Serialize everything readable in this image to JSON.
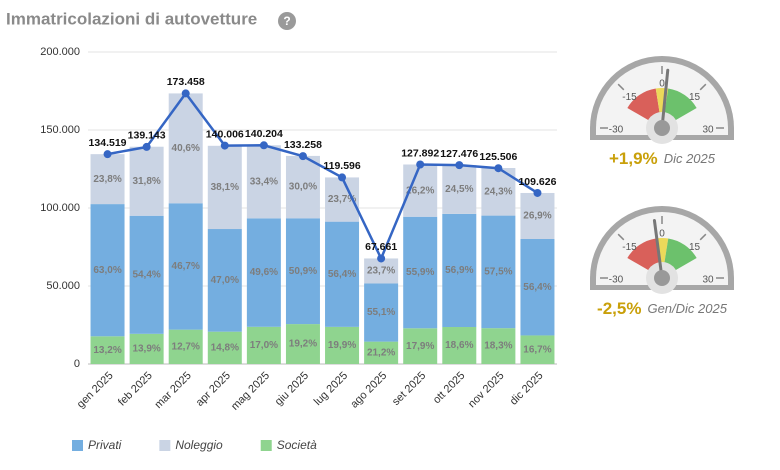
{
  "header": {
    "title": "Immatricolazioni di autovetture",
    "help_icon": "?"
  },
  "chart_data": [
    {
      "type": "stacked-bar-line",
      "categories": [
        "gen 2025",
        "feb 2025",
        "mar 2025",
        "apr 2025",
        "mag 2025",
        "giu 2025",
        "lug 2025",
        "ago 2025",
        "set 2025",
        "ott 2025",
        "nov 2025",
        "dic 2025"
      ],
      "series": [
        {
          "name": "Privati",
          "color": "#74aee0",
          "values": [
            63.0,
            54.4,
            46.7,
            47.0,
            49.6,
            50.9,
            56.4,
            55.1,
            55.9,
            56.9,
            57.5,
            56.4
          ],
          "value_labels": [
            "63,0%",
            "54,4%",
            "46,7%",
            "47,0%",
            "49,6%",
            "50,9%",
            "56,4%",
            "55,1%",
            "55,9%",
            "56,9%",
            "57,5%",
            "56,4%"
          ]
        },
        {
          "name": "Noleggio",
          "color": "#cad4e4",
          "values": [
            23.8,
            31.8,
            40.6,
            38.1,
            33.4,
            30.0,
            23.7,
            23.7,
            26.2,
            24.5,
            24.3,
            26.9
          ],
          "value_labels": [
            "23,8%",
            "31,8%",
            "40,6%",
            "38,1%",
            "33,4%",
            "30,0%",
            "23,7%",
            "23,7%",
            "26,2%",
            "24,5%",
            "24,3%",
            "26,9%"
          ]
        },
        {
          "name": "Società",
          "color": "#8fd48f",
          "values": [
            13.2,
            13.9,
            12.7,
            14.8,
            17.0,
            19.2,
            19.9,
            21.2,
            17.9,
            18.6,
            18.3,
            16.7
          ],
          "value_labels": [
            "13,2%",
            "13,9%",
            "12,7%",
            "14,8%",
            "17,0%",
            "19,2%",
            "19,9%",
            "21,2%",
            "17,9%",
            "18,6%",
            "18,3%",
            "16,7%"
          ]
        }
      ],
      "line": {
        "color": "#3566c4",
        "values": [
          134519,
          139143,
          173458,
          140006,
          140204,
          133258,
          119596,
          67661,
          127892,
          127476,
          125506,
          109626
        ],
        "value_labels": [
          "134.519",
          "139.143",
          "173.458",
          "140.006",
          "140.204",
          "133.258",
          "119.596",
          "67.661",
          "127.892",
          "127.476",
          "125.506",
          "109.626"
        ]
      },
      "ylim": [
        0,
        200000
      ],
      "yticks": [
        0,
        {
          "value": 50000,
          "label": "50.000"
        },
        {
          "value": 100000,
          "label": "100.000"
        },
        {
          "value": 150000,
          "label": "150.000"
        },
        {
          "value": 200000,
          "label": "200.000"
        }
      ],
      "grid": true,
      "legend": "bottom"
    },
    {
      "type": "gauge",
      "value": 1.9,
      "value_label": "+1,9%",
      "period": "Dic 2025",
      "range": [
        -30,
        30
      ],
      "ticks": [
        -30,
        -15,
        0,
        15,
        30
      ],
      "bands": [
        {
          "from": -20,
          "to": -3,
          "color": "#d9605a"
        },
        {
          "from": -3,
          "to": 3,
          "color": "#ecd95a"
        },
        {
          "from": 3,
          "to": 20,
          "color": "#6cc16c"
        }
      ]
    },
    {
      "type": "gauge",
      "value": -2.5,
      "value_label": "-2,5%",
      "period": "Gen/Dic 2025",
      "range": [
        -30,
        30
      ],
      "ticks": [
        -30,
        -15,
        0,
        15,
        30
      ],
      "bands": [
        {
          "from": -20,
          "to": -3,
          "color": "#d9605a"
        },
        {
          "from": -3,
          "to": 3,
          "color": "#ecd95a"
        },
        {
          "from": 3,
          "to": 20,
          "color": "#6cc16c"
        }
      ]
    }
  ]
}
